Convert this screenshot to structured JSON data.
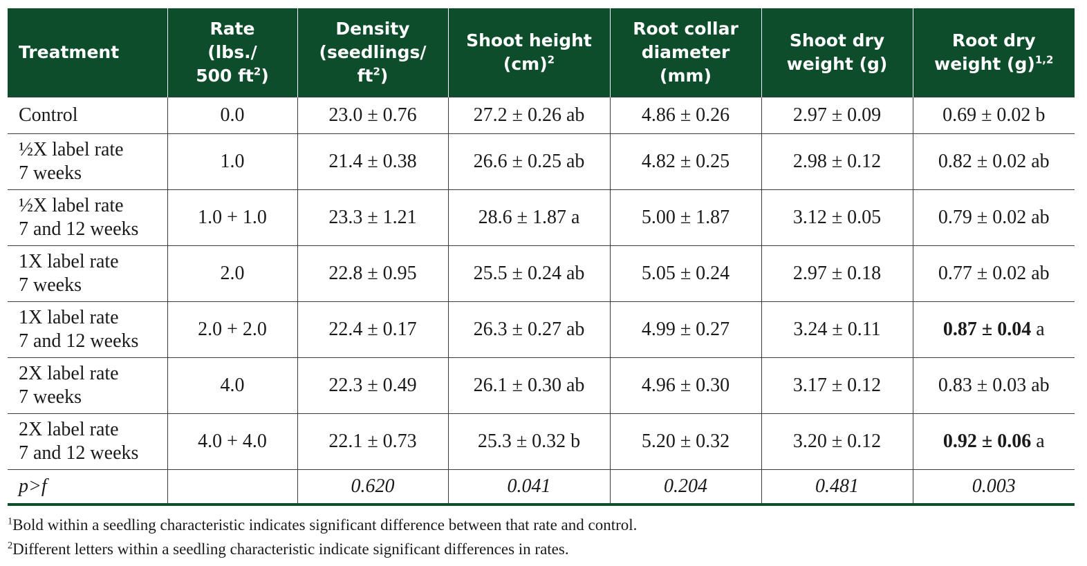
{
  "headers": [
    {
      "lines": [
        "Treatment"
      ]
    },
    {
      "lines": [
        "Rate",
        "(lbs./",
        "500 ft"
      ],
      "sup": "2",
      "after": ")"
    },
    {
      "lines": [
        "Density",
        "(seedlings/",
        "ft"
      ],
      "sup": "2",
      "after": ")"
    },
    {
      "lines": [
        "Shoot height",
        "(cm)"
      ],
      "sup": "2",
      "after": ""
    },
    {
      "lines": [
        "Root collar",
        "diameter",
        "(mm)"
      ]
    },
    {
      "lines": [
        "Shoot dry",
        "weight (g)"
      ]
    },
    {
      "lines": [
        "Root dry",
        "weight (g)"
      ],
      "sup": "1,2",
      "after": ""
    }
  ],
  "rows": [
    {
      "treatment": [
        "Control"
      ],
      "rate": "0.0",
      "density": "23.0 ± 0.76",
      "shoot_height": "27.2 ± 0.26 ab",
      "root_collar": "4.86 ± 0.26",
      "shoot_dry": "2.97 ± 0.09",
      "root_dry": {
        "value": "0.69 ± 0.02",
        "letter": " b",
        "bold": false
      }
    },
    {
      "treatment": [
        "½X label rate",
        "7 weeks"
      ],
      "rate": "1.0",
      "density": "21.4 ± 0.38",
      "shoot_height": "26.6 ± 0.25 ab",
      "root_collar": "4.82 ± 0.25",
      "shoot_dry": "2.98 ± 0.12",
      "root_dry": {
        "value": "0.82 ± 0.02",
        "letter": " ab",
        "bold": false
      }
    },
    {
      "treatment": [
        "½X label rate",
        "7 and 12 weeks"
      ],
      "rate": "1.0 + 1.0",
      "density": "23.3 ± 1.21",
      "shoot_height": "28.6 ± 1.87 a",
      "root_collar": "5.00 ± 1.87",
      "shoot_dry": "3.12 ± 0.05",
      "root_dry": {
        "value": "0.79 ± 0.02",
        "letter": " ab",
        "bold": false
      }
    },
    {
      "treatment": [
        "1X label rate",
        "7 weeks"
      ],
      "rate": "2.0",
      "density": "22.8 ± 0.95",
      "shoot_height": "25.5 ± 0.24 ab",
      "root_collar": "5.05 ± 0.24",
      "shoot_dry": "2.97 ± 0.18",
      "root_dry": {
        "value": "0.77 ± 0.02",
        "letter": " ab",
        "bold": false
      }
    },
    {
      "treatment": [
        "1X label rate",
        "7 and 12 weeks"
      ],
      "rate": "2.0 + 2.0",
      "density": "22.4 ± 0.17",
      "shoot_height": "26.3 ± 0.27 ab",
      "root_collar": "4.99 ± 0.27",
      "shoot_dry": "3.24 ± 0.11",
      "root_dry": {
        "value": "0.87 ± 0.04",
        "letter": " a",
        "bold": true
      }
    },
    {
      "treatment": [
        "2X label rate",
        "7 weeks"
      ],
      "rate": "4.0",
      "density": "22.3 ± 0.49",
      "shoot_height": "26.1 ± 0.30 ab",
      "root_collar": "4.96 ± 0.30",
      "shoot_dry": "3.17 ± 0.12",
      "root_dry": {
        "value": "0.83 ± 0.03",
        "letter": " ab",
        "bold": false
      }
    },
    {
      "treatment": [
        "2X label rate",
        "7 and 12 weeks"
      ],
      "rate": "4.0 + 4.0",
      "density": "22.1 ± 0.73",
      "shoot_height": "25.3 ± 0.32 b",
      "root_collar": "5.20 ± 0.32",
      "shoot_dry": "3.20 ± 0.12",
      "root_dry": {
        "value": "0.92 ± 0.06",
        "letter": " a",
        "bold": true
      }
    }
  ],
  "pf_row": {
    "label": "p>f",
    "rate": "",
    "density": "0.620",
    "shoot_height": "0.041",
    "root_collar": "0.204",
    "shoot_dry": "0.481",
    "root_dry": "0.003"
  },
  "footnotes": [
    {
      "mark": "1",
      "text": "Bold within a seedling characteristic indicates significant difference between that rate and control."
    },
    {
      "mark": "2",
      "text": "Different letters within a seedling characteristic indicate significant differences in rates."
    }
  ]
}
